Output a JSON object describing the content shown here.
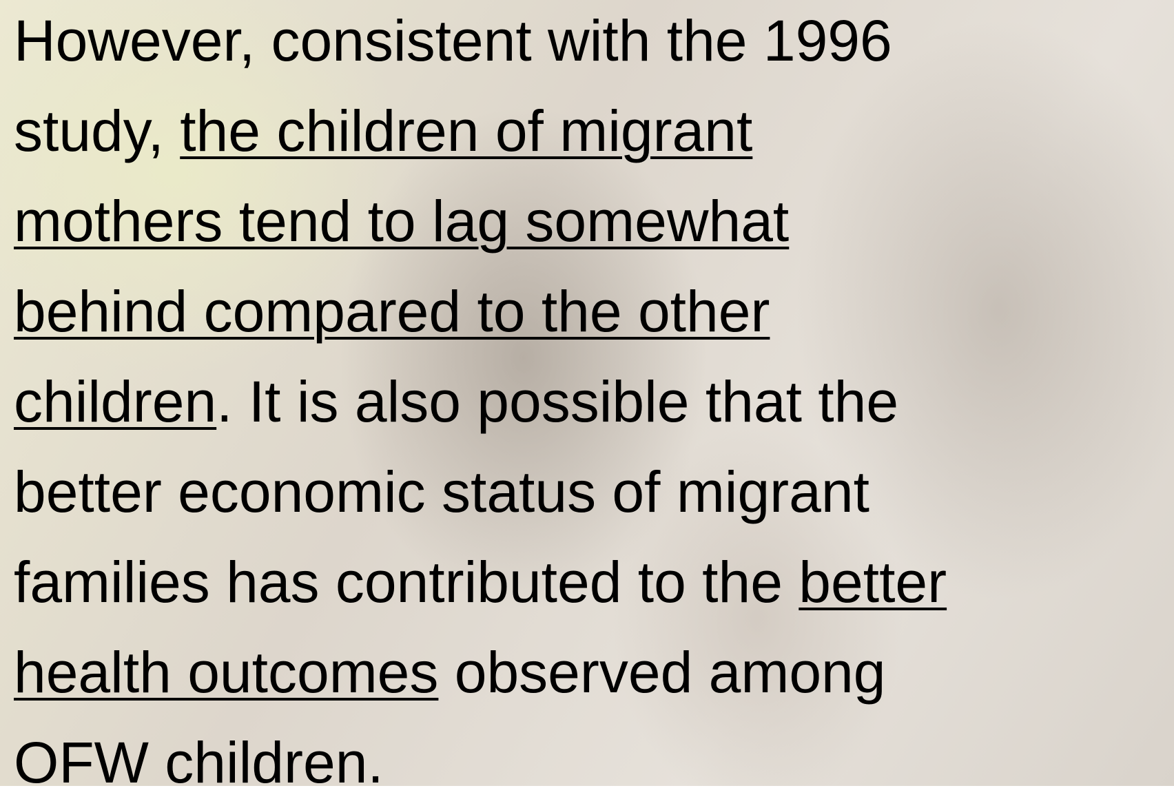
{
  "paragraph": {
    "lines": [
      [
        {
          "text": "However, consistent with the 1996",
          "underline": false
        }
      ],
      [
        {
          "text": "study, ",
          "underline": false
        },
        {
          "text": "the children of migrant",
          "underline": true
        }
      ],
      [
        {
          "text": "mothers tend to lag somewhat",
          "underline": true
        }
      ],
      [
        {
          "text": "behind compared to the other",
          "underline": true
        }
      ],
      [
        {
          "text": "children",
          "underline": true
        },
        {
          "text": ". It is also possible that the",
          "underline": false
        }
      ],
      [
        {
          "text": "better economic status of migrant",
          "underline": false
        }
      ],
      [
        {
          "text": "families has contributed to the ",
          "underline": false
        },
        {
          "text": "better",
          "underline": true
        }
      ],
      [
        {
          "text": "health outcomes",
          "underline": true
        },
        {
          "text": " observed among",
          "underline": false
        }
      ],
      [
        {
          "text": "OFW children.",
          "underline": false
        }
      ]
    ]
  }
}
